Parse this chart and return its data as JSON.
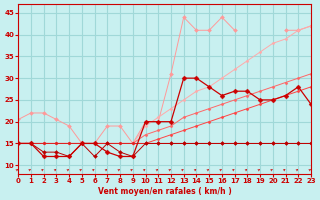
{
  "title": "",
  "xlabel": "Vent moyen/en rafales ( km/h )",
  "ylabel": "",
  "xlim": [
    0,
    23
  ],
  "ylim": [
    8,
    47
  ],
  "yticks": [
    10,
    15,
    20,
    25,
    30,
    35,
    40,
    45
  ],
  "xticks": [
    0,
    1,
    2,
    3,
    4,
    5,
    6,
    7,
    8,
    9,
    10,
    11,
    12,
    13,
    14,
    15,
    16,
    17,
    18,
    19,
    20,
    21,
    22,
    23
  ],
  "bg_color": "#c8f0f0",
  "grid_color": "#a0d8d8",
  "line1_x": [
    0,
    1,
    2,
    3,
    4,
    5,
    6,
    7,
    8,
    9,
    10,
    11,
    12,
    13,
    14,
    15,
    16,
    17,
    18,
    19,
    20,
    21,
    22,
    23
  ],
  "line1_y": [
    20.5,
    22,
    22,
    20.5,
    19,
    15,
    15,
    19,
    19,
    15,
    20,
    20,
    31,
    44,
    41,
    41,
    44,
    41,
    null,
    null,
    null,
    41,
    41,
    42
  ],
  "line1_color": "#ff9999",
  "line2_x": [
    0,
    1,
    2,
    3,
    4,
    5,
    6,
    7,
    8,
    9,
    10,
    11,
    12,
    13,
    14,
    15,
    16,
    17,
    18,
    19,
    20,
    21,
    22,
    23
  ],
  "line2_y": [
    15,
    15,
    12,
    12,
    12,
    15,
    15,
    13,
    12,
    12,
    20,
    20,
    20,
    30,
    30,
    28,
    26,
    27,
    27,
    25,
    25,
    26,
    28,
    24
  ],
  "line2_color": "#cc0000",
  "line3_x": [
    0,
    1,
    2,
    3,
    4,
    5,
    6,
    7,
    8,
    9,
    10,
    11,
    12,
    13,
    14,
    15,
    16,
    17,
    18,
    19,
    20,
    21,
    22,
    23
  ],
  "line3_y": [
    15,
    15,
    15,
    15,
    15,
    15,
    15,
    15,
    15,
    15,
    17,
    18,
    19,
    21,
    22,
    23,
    24,
    25,
    26,
    27,
    28,
    29,
    30,
    31
  ],
  "line3_color": "#ff6666",
  "line4_x": [
    0,
    1,
    2,
    3,
    4,
    5,
    6,
    7,
    8,
    9,
    10,
    11,
    12,
    13,
    14,
    15,
    16,
    17,
    18,
    19,
    20,
    21,
    22,
    23
  ],
  "line4_y": [
    15,
    15,
    15,
    15,
    15,
    15,
    15,
    15,
    15,
    15,
    15,
    16,
    17,
    18,
    19,
    20,
    21,
    22,
    23,
    24,
    25,
    26,
    27,
    28
  ],
  "line4_color": "#ff4444",
  "line5_x": [
    0,
    1,
    2,
    3,
    4,
    5,
    6,
    7,
    8,
    9,
    10,
    11,
    12,
    13,
    14,
    15,
    16,
    17,
    18,
    19,
    20,
    21,
    22,
    23
  ],
  "line5_y": [
    15,
    15,
    15,
    15,
    15,
    15,
    15,
    15,
    15,
    15,
    15,
    15,
    15,
    15,
    15,
    15,
    15,
    15,
    15,
    15,
    15,
    15,
    15,
    15
  ],
  "line5_color": "#dd2222",
  "line6_x": [
    0,
    1,
    2,
    3,
    4,
    5,
    6,
    7,
    8,
    9,
    10,
    11,
    12,
    13,
    14,
    15,
    16,
    17,
    18,
    19,
    20,
    21,
    22,
    23
  ],
  "line6_y": [
    15,
    15,
    13,
    13,
    12,
    15,
    12,
    15,
    13,
    12,
    15,
    15,
    15,
    15,
    15,
    15,
    15,
    15,
    15,
    15,
    15,
    15,
    15,
    15
  ],
  "line6_color": "#bb0000",
  "line7_x": [
    0,
    1,
    2,
    3,
    4,
    5,
    6,
    7,
    8,
    9,
    10,
    11,
    12,
    13,
    14,
    15,
    16,
    17,
    18,
    19,
    20,
    21,
    22,
    23
  ],
  "line7_y": [
    15,
    15,
    15,
    15,
    15,
    15,
    15,
    15,
    15,
    15,
    19,
    21,
    23,
    25,
    27,
    28,
    30,
    32,
    34,
    36,
    38,
    39,
    41,
    42
  ],
  "line7_color": "#ffaaaa"
}
